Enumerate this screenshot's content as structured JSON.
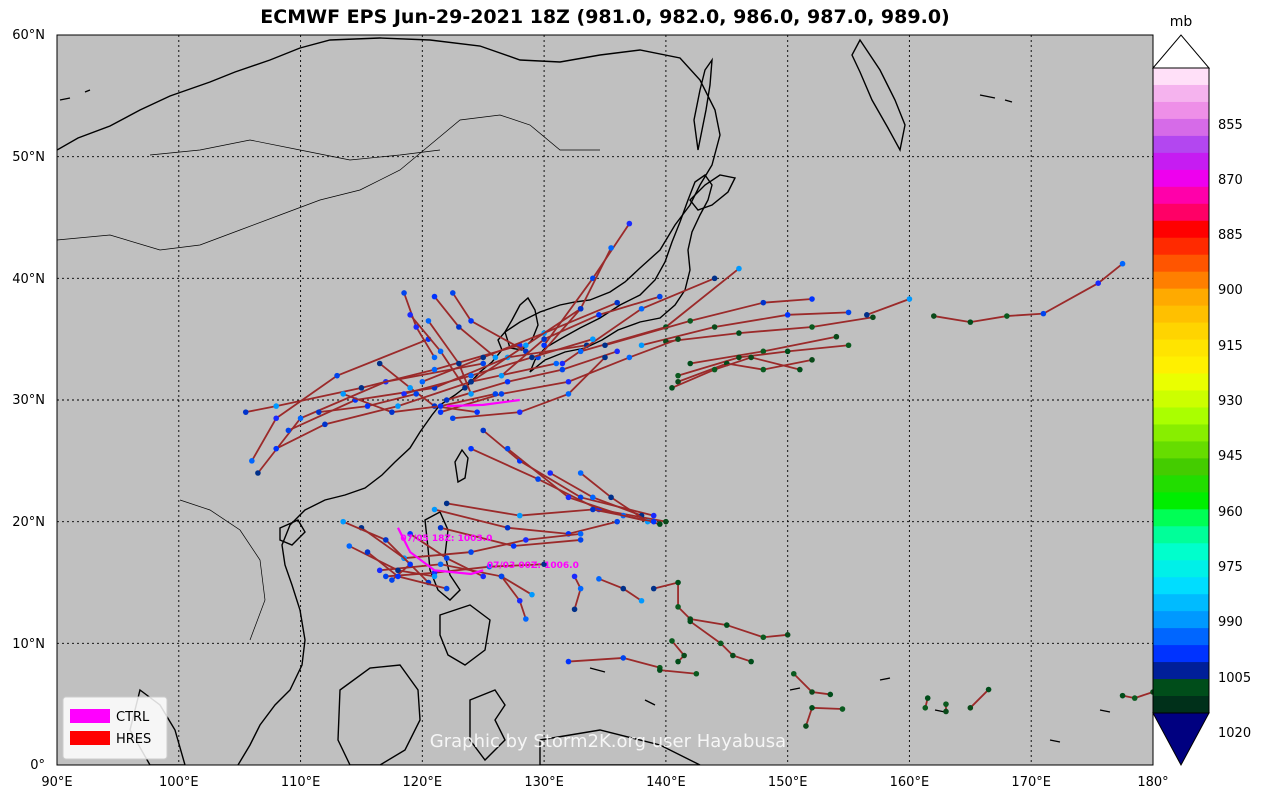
{
  "title": "ECMWF EPS Jun-29-2021 18Z (981.0, 982.0, 986.0, 987.0, 989.0)",
  "map": {
    "lon_range": [
      90,
      180
    ],
    "lat_range": [
      0,
      60
    ],
    "lon_ticks": [
      "90°E",
      "100°E",
      "110°E",
      "120°E",
      "130°E",
      "140°E",
      "150°E",
      "160°E",
      "170°E",
      "180°"
    ],
    "lat_ticks": [
      "0°",
      "10°N",
      "20°N",
      "30°N",
      "40°N",
      "50°N",
      "60°N"
    ],
    "ocean_color": "#c0c0c0",
    "watermark": "Graphic by Storm2K.org user Hayabusa"
  },
  "legend": {
    "items": [
      {
        "label": "CTRL",
        "color": "#ff00ff"
      },
      {
        "label": "HRES",
        "color": "#ff0000"
      }
    ]
  },
  "colorbar": {
    "unit": "mb",
    "tick_labels": [
      "855",
      "870",
      "885",
      "900",
      "915",
      "930",
      "945",
      "960",
      "975",
      "990",
      "1005",
      "1020"
    ],
    "colors": [
      "#ffffff",
      "#ffe0f8",
      "#f5b3ee",
      "#ee8fe8",
      "#d66be8",
      "#b347f0",
      "#c61cf2",
      "#ee00ee",
      "#ff00aa",
      "#ff0066",
      "#ff0000",
      "#ff2a00",
      "#ff5500",
      "#ff7f00",
      "#ffaa00",
      "#ffc000",
      "#ffd400",
      "#ffe400",
      "#fff000",
      "#eaff00",
      "#ccff00",
      "#aaff00",
      "#88ee00",
      "#66dd00",
      "#44cc00",
      "#22dd00",
      "#00ee00",
      "#00ff55",
      "#00ff99",
      "#00ffcc",
      "#00f0e8",
      "#00ddff",
      "#00bbff",
      "#0099ff",
      "#0066ff",
      "#0033ff",
      "#001f99",
      "#004d1a",
      "#00301a",
      "#000080"
    ]
  },
  "tracks": {
    "annotations": [
      {
        "text": "07/05 18Z: 1003.0",
        "lon": 118.2,
        "lat": 18.4
      },
      {
        "text": "07/03 00Z: 1006.0",
        "lon": 125.3,
        "lat": 16.2
      }
    ],
    "segments": [
      [
        [
          120.5,
          35.0
        ],
        [
          113.0,
          32.0
        ],
        [
          108.0,
          28.5
        ],
        [
          106.0,
          25.0
        ]
      ],
      [
        [
          125.0,
          33.0
        ],
        [
          117.0,
          31.5
        ],
        [
          110.0,
          28.5
        ],
        [
          106.5,
          24.0
        ]
      ],
      [
        [
          128.0,
          34.5
        ],
        [
          121.0,
          32.5
        ],
        [
          115.0,
          31.0
        ],
        [
          108.0,
          29.5
        ],
        [
          105.5,
          29.0
        ]
      ],
      [
        [
          131.0,
          33.0
        ],
        [
          124.0,
          31.5
        ],
        [
          118.0,
          29.5
        ],
        [
          112.0,
          28.0
        ],
        [
          108.0,
          26.0
        ]
      ],
      [
        [
          133.5,
          34.5
        ],
        [
          127.0,
          33.5
        ],
        [
          121.0,
          31.0
        ],
        [
          114.5,
          30.0
        ],
        [
          109.0,
          27.5
        ]
      ],
      [
        [
          126.0,
          33.5
        ],
        [
          123.0,
          36.0
        ],
        [
          121.0,
          38.5
        ]
      ],
      [
        [
          128.5,
          34.0
        ],
        [
          124.0,
          36.5
        ],
        [
          122.5,
          38.8
        ]
      ],
      [
        [
          130.0,
          34.5
        ],
        [
          134.0,
          40.0
        ],
        [
          137.0,
          44.5
        ]
      ],
      [
        [
          129.5,
          33.5
        ],
        [
          133.0,
          37.5
        ],
        [
          135.5,
          42.5
        ]
      ],
      [
        [
          131.5,
          33.0
        ],
        [
          138.0,
          37.5
        ],
        [
          144.0,
          40.0
        ]
      ],
      [
        [
          133.0,
          34.0
        ],
        [
          140.0,
          36.0
        ],
        [
          146.0,
          40.8
        ]
      ],
      [
        [
          135.0,
          34.5
        ],
        [
          142.0,
          36.5
        ],
        [
          148.0,
          38.0
        ],
        [
          152.0,
          38.3
        ]
      ],
      [
        [
          138.0,
          34.5
        ],
        [
          144.0,
          36.0
        ],
        [
          150.0,
          37.0
        ],
        [
          155.0,
          37.2
        ]
      ],
      [
        [
          140.0,
          34.8
        ],
        [
          146.0,
          35.5
        ],
        [
          152.0,
          36.0
        ],
        [
          157.0,
          36.8
        ]
      ],
      [
        [
          142.0,
          33.0
        ],
        [
          148.0,
          34.0
        ],
        [
          154.0,
          35.2
        ]
      ],
      [
        [
          141.0,
          32.0
        ],
        [
          146.0,
          33.5
        ],
        [
          150.0,
          34.0
        ],
        [
          155.0,
          34.5
        ]
      ],
      [
        [
          141.0,
          31.5
        ],
        [
          145.0,
          33.0
        ],
        [
          148.0,
          32.5
        ],
        [
          152.0,
          33.3
        ]
      ],
      [
        [
          140.5,
          31.0
        ],
        [
          144.0,
          32.5
        ],
        [
          147.0,
          33.5
        ],
        [
          151.0,
          32.5
        ]
      ],
      [
        [
          156.5,
          37.0
        ],
        [
          160.0,
          38.3
        ]
      ],
      [
        [
          162.0,
          36.9
        ],
        [
          165.0,
          36.4
        ],
        [
          168.0,
          36.9
        ],
        [
          171.0,
          37.1
        ],
        [
          175.5,
          39.6
        ],
        [
          177.5,
          41.2
        ]
      ],
      [
        [
          122.0,
          30.0
        ],
        [
          127.0,
          31.5
        ],
        [
          131.5,
          32.5
        ],
        [
          136.0,
          34.0
        ]
      ],
      [
        [
          121.5,
          29.0
        ],
        [
          126.5,
          30.5
        ],
        [
          132.0,
          31.5
        ],
        [
          137.0,
          33.5
        ],
        [
          141.0,
          35.0
        ]
      ],
      [
        [
          122.5,
          28.5
        ],
        [
          128.0,
          29.0
        ],
        [
          132.0,
          30.5
        ],
        [
          135.0,
          33.5
        ]
      ],
      [
        [
          118.5,
          30.5
        ],
        [
          124.0,
          32.0
        ],
        [
          129.0,
          33.5
        ],
        [
          134.0,
          35.0
        ]
      ],
      [
        [
          120.0,
          31.5
        ],
        [
          125.0,
          33.5
        ],
        [
          130.0,
          35.5
        ],
        [
          136.0,
          38.0
        ]
      ],
      [
        [
          124.0,
          31.5
        ],
        [
          128.5,
          34.5
        ],
        [
          133.0,
          37.5
        ]
      ],
      [
        [
          126.5,
          32.0
        ],
        [
          130.0,
          35.0
        ],
        [
          134.5,
          37.0
        ],
        [
          139.5,
          38.5
        ]
      ],
      [
        [
          125.0,
          27.5
        ],
        [
          128.0,
          25.0
        ],
        [
          133.0,
          22.0
        ],
        [
          139.0,
          20.5
        ]
      ],
      [
        [
          124.0,
          26.0
        ],
        [
          129.5,
          23.5
        ],
        [
          134.5,
          21.0
        ],
        [
          140.0,
          20.0
        ]
      ],
      [
        [
          127.0,
          26.0
        ],
        [
          132.0,
          22.0
        ],
        [
          136.5,
          20.5
        ],
        [
          139.5,
          19.8
        ]
      ],
      [
        [
          130.5,
          24.0
        ],
        [
          134.0,
          22.0
        ],
        [
          138.0,
          20.5
        ]
      ],
      [
        [
          133.0,
          24.0
        ],
        [
          135.5,
          22.0
        ],
        [
          138.5,
          20.0
        ]
      ],
      [
        [
          122.0,
          21.5
        ],
        [
          128.0,
          20.5
        ],
        [
          134.0,
          21.0
        ],
        [
          139.0,
          20.0
        ]
      ],
      [
        [
          121.0,
          21.0
        ],
        [
          127.0,
          19.5
        ],
        [
          132.0,
          19.0
        ],
        [
          136.0,
          20.0
        ]
      ],
      [
        [
          121.5,
          19.5
        ],
        [
          127.5,
          18.0
        ],
        [
          133.0,
          18.5
        ]
      ],
      [
        [
          118.5,
          17.0
        ],
        [
          124.0,
          17.5
        ],
        [
          128.5,
          18.5
        ],
        [
          133.0,
          19.0
        ]
      ],
      [
        [
          117.0,
          15.5
        ],
        [
          121.0,
          15.8
        ],
        [
          125.5,
          16.3
        ],
        [
          130.0,
          16.5
        ]
      ],
      [
        [
          116.5,
          16.0
        ],
        [
          121.5,
          16.5
        ],
        [
          126.5,
          15.5
        ],
        [
          129.0,
          14.0
        ]
      ],
      [
        [
          114.0,
          18.0
        ],
        [
          118.0,
          16.0
        ],
        [
          121.0,
          15.5
        ]
      ],
      [
        [
          115.0,
          19.5
        ],
        [
          118.5,
          17.0
        ],
        [
          120.5,
          15.0
        ]
      ],
      [
        [
          113.5,
          20.0
        ],
        [
          117.0,
          18.5
        ],
        [
          119.0,
          16.5
        ],
        [
          117.5,
          15.2
        ]
      ],
      [
        [
          115.5,
          17.5
        ],
        [
          118.0,
          15.5
        ],
        [
          122.0,
          14.5
        ]
      ],
      [
        [
          119.0,
          19.0
        ],
        [
          122.0,
          17.0
        ],
        [
          125.0,
          15.5
        ]
      ],
      [
        [
          126.5,
          15.5
        ],
        [
          128.0,
          13.5
        ],
        [
          128.5,
          12.0
        ]
      ],
      [
        [
          132.5,
          15.5
        ],
        [
          133.0,
          14.5
        ],
        [
          132.5,
          12.8
        ]
      ],
      [
        [
          134.5,
          15.3
        ],
        [
          136.5,
          14.5
        ],
        [
          138.0,
          13.5
        ]
      ],
      [
        [
          139.0,
          14.5
        ],
        [
          141.0,
          15.0
        ],
        [
          141.0,
          13.0
        ],
        [
          142.0,
          12.0
        ],
        [
          145.0,
          11.5
        ],
        [
          148.0,
          10.5
        ],
        [
          150.0,
          10.7
        ]
      ],
      [
        [
          142.0,
          11.8
        ],
        [
          144.5,
          10.0
        ],
        [
          145.5,
          9.0
        ],
        [
          147.0,
          8.5
        ]
      ],
      [
        [
          140.5,
          10.2
        ],
        [
          141.5,
          9.0
        ],
        [
          141.0,
          8.5
        ]
      ],
      [
        [
          132.0,
          8.5
        ],
        [
          136.5,
          8.8
        ],
        [
          139.5,
          8.0
        ]
      ],
      [
        [
          139.5,
          7.8
        ],
        [
          142.5,
          7.5
        ]
      ],
      [
        [
          150.5,
          7.5
        ],
        [
          152.0,
          6.0
        ],
        [
          153.5,
          5.8
        ]
      ],
      [
        [
          151.5,
          3.2
        ],
        [
          152.0,
          4.7
        ],
        [
          154.5,
          4.6
        ]
      ],
      [
        [
          161.5,
          5.5
        ],
        [
          161.3,
          4.7
        ]
      ],
      [
        [
          163.0,
          5.0
        ],
        [
          163.0,
          4.4
        ]
      ],
      [
        [
          165.0,
          4.7
        ],
        [
          166.5,
          6.2
        ]
      ],
      [
        [
          177.5,
          5.7
        ],
        [
          178.5,
          5.5
        ],
        [
          180.0,
          6.0
        ]
      ],
      [
        [
          118.5,
          38.8
        ],
        [
          119.5,
          36.0
        ],
        [
          121.0,
          33.5
        ]
      ],
      [
        [
          119.0,
          37.0
        ],
        [
          121.5,
          34.0
        ],
        [
          123.5,
          31.0
        ]
      ],
      [
        [
          120.5,
          36.5
        ],
        [
          123.0,
          33.0
        ],
        [
          124.0,
          30.5
        ]
      ],
      [
        [
          116.5,
          33.0
        ],
        [
          119.0,
          31.0
        ],
        [
          121.0,
          29.5
        ],
        [
          124.5,
          29.0
        ]
      ],
      [
        [
          113.5,
          30.5
        ],
        [
          117.5,
          29.0
        ],
        [
          121.5,
          29.5
        ],
        [
          126.0,
          30.5
        ]
      ],
      [
        [
          111.5,
          29.0
        ],
        [
          115.5,
          29.5
        ],
        [
          119.5,
          30.5
        ]
      ]
    ],
    "ctrl": [
      [
        118.0,
        19.5
      ],
      [
        119.0,
        17.5
      ],
      [
        121.0,
        16.0
      ],
      [
        124.0,
        15.7
      ],
      [
        125.0,
        16.0
      ]
    ],
    "ctrl2": [
      [
        122.0,
        29.5
      ],
      [
        125.0,
        29.6
      ],
      [
        128.0,
        30.0
      ]
    ]
  }
}
